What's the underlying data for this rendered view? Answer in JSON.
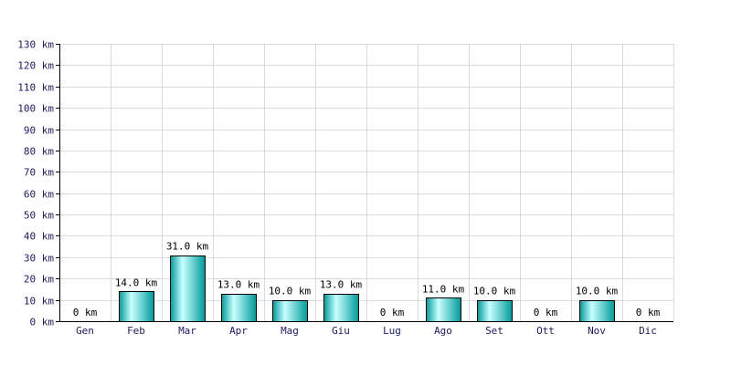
{
  "chart_data": {
    "type": "bar",
    "categories": [
      "Gen",
      "Feb",
      "Mar",
      "Apr",
      "Mag",
      "Giu",
      "Lug",
      "Ago",
      "Set",
      "Ott",
      "Nov",
      "Dic"
    ],
    "values": [
      0,
      14,
      31,
      13,
      10,
      13,
      0,
      11,
      10,
      0,
      10,
      0
    ],
    "data_labels": [
      "0 km",
      "14.0 km",
      "31.0 km",
      "13.0 km",
      "10.0 km",
      "13.0 km",
      "0 km",
      "11.0 km",
      "10.0 km",
      "0 km",
      "10.0 km",
      "0 km"
    ],
    "y_ticks": [
      0,
      10,
      20,
      30,
      40,
      50,
      60,
      70,
      80,
      90,
      100,
      110,
      120,
      130
    ],
    "y_tick_labels": [
      "0 km",
      "10 km",
      "20 km",
      "30 km",
      "40 km",
      "50 km",
      "60 km",
      "70 km",
      "80 km",
      "90 km",
      "100 km",
      "110 km",
      "120 km",
      "130 km"
    ],
    "ylim": [
      0,
      130
    ],
    "grid": true,
    "title": "",
    "xlabel": "",
    "ylabel": "",
    "colors": {
      "bar_light": "#c8ffff",
      "bar_mid": "#00e0e0",
      "bar_dark": "#009a9a",
      "bar_border": "#000000",
      "grid": "#d9d9df",
      "axis": "#000000",
      "tick_text": "#1a1a66"
    }
  }
}
